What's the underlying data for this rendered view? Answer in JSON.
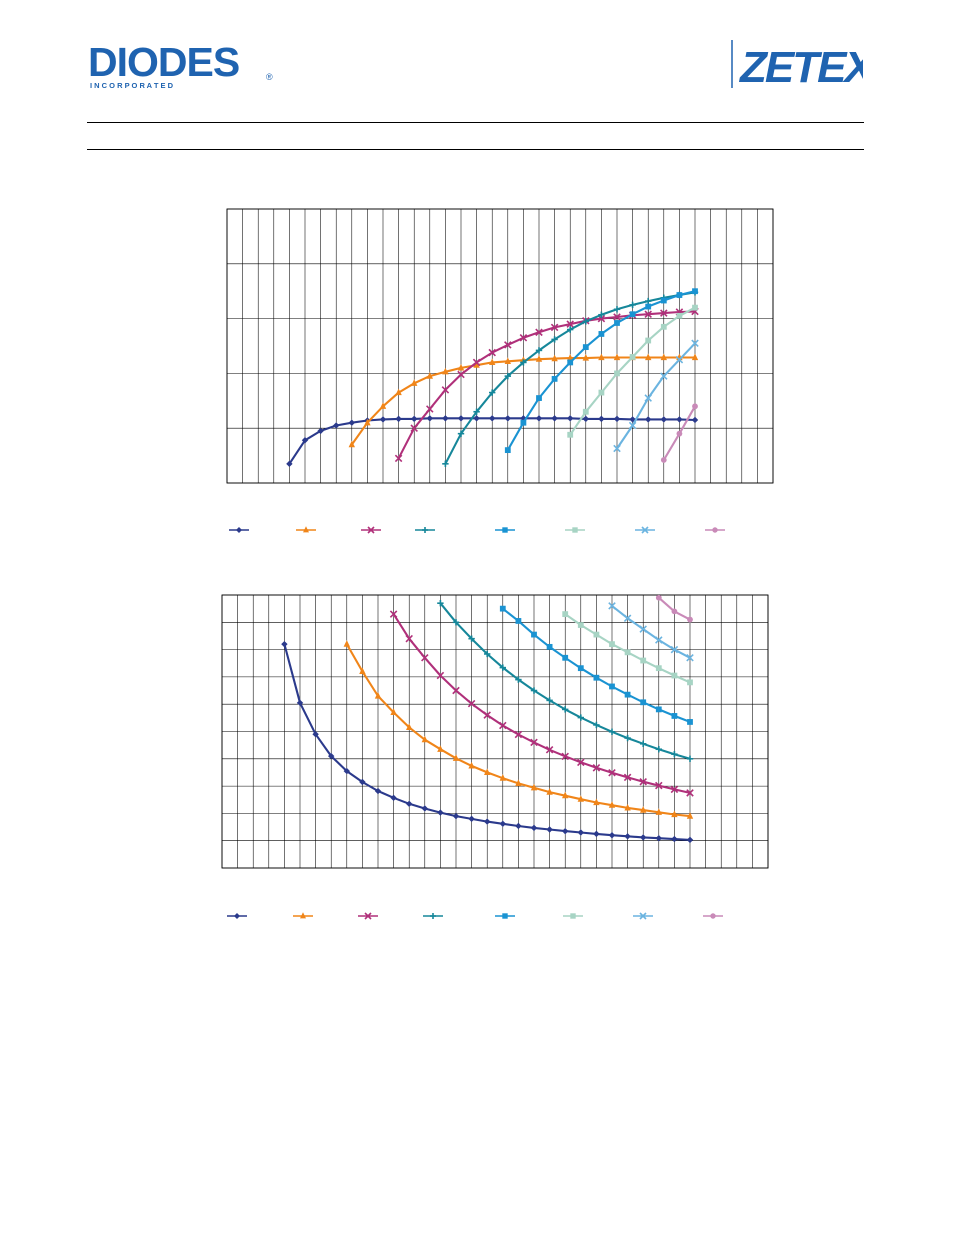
{
  "header": {
    "company_logo": "DIODES",
    "company_tagline": "I N C O R P O R A T E D",
    "registered_mark": "®",
    "brand_logo": "ZETEX",
    "brand_color": "#1f63b0"
  },
  "series_styles": [
    {
      "color": "#2b3a8c",
      "marker": "diamond"
    },
    {
      "color": "#f08519",
      "marker": "triangle"
    },
    {
      "color": "#b0307a",
      "marker": "x"
    },
    {
      "color": "#16879a",
      "marker": "plus"
    },
    {
      "color": "#1a93d2",
      "marker": "square"
    },
    {
      "color": "#a7d4c4",
      "marker": "square"
    },
    {
      "color": "#6bb4e0",
      "marker": "x"
    },
    {
      "color": "#c98ab8",
      "marker": "circle"
    }
  ],
  "chart_data": [
    {
      "type": "line",
      "title": "",
      "xlabel": "",
      "ylabel": "",
      "xlim": [
        0,
        35
      ],
      "ylim": [
        0,
        5
      ],
      "x_grid_step": 1,
      "y_grid_step": 1,
      "grid": true,
      "legend": "bottom",
      "series": [
        {
          "x": [
            4,
            5,
            6,
            7,
            8,
            9,
            10,
            11,
            12,
            13,
            14,
            15,
            16,
            17,
            18,
            19,
            20,
            21,
            22,
            23,
            24,
            25,
            26,
            27,
            28,
            29,
            30
          ],
          "y": [
            0.35,
            0.78,
            0.95,
            1.05,
            1.1,
            1.14,
            1.16,
            1.17,
            1.17,
            1.18,
            1.18,
            1.18,
            1.18,
            1.18,
            1.18,
            1.18,
            1.18,
            1.18,
            1.18,
            1.17,
            1.17,
            1.17,
            1.16,
            1.16,
            1.16,
            1.16,
            1.15
          ]
        },
        {
          "x": [
            8,
            9,
            10,
            11,
            12,
            13,
            14,
            15,
            16,
            17,
            18,
            19,
            20,
            21,
            22,
            23,
            24,
            25,
            26,
            27,
            28,
            29,
            30
          ],
          "y": [
            0.7,
            1.1,
            1.4,
            1.65,
            1.82,
            1.95,
            2.03,
            2.1,
            2.15,
            2.2,
            2.22,
            2.24,
            2.26,
            2.27,
            2.28,
            2.28,
            2.29,
            2.29,
            2.29,
            2.29,
            2.29,
            2.29,
            2.29
          ]
        },
        {
          "x": [
            11,
            12,
            13,
            14,
            15,
            16,
            17,
            18,
            19,
            20,
            21,
            22,
            23,
            24,
            25,
            26,
            27,
            28,
            29,
            30
          ],
          "y": [
            0.45,
            1.0,
            1.35,
            1.7,
            1.98,
            2.2,
            2.38,
            2.52,
            2.65,
            2.75,
            2.84,
            2.9,
            2.96,
            3.0,
            3.03,
            3.06,
            3.08,
            3.1,
            3.12,
            3.13
          ]
        },
        {
          "x": [
            14,
            15,
            16,
            17,
            18,
            19,
            20,
            21,
            22,
            23,
            24,
            25,
            26,
            27,
            28,
            29,
            30
          ],
          "y": [
            0.35,
            0.9,
            1.3,
            1.65,
            1.95,
            2.2,
            2.42,
            2.62,
            2.8,
            2.95,
            3.07,
            3.17,
            3.25,
            3.32,
            3.38,
            3.43,
            3.48
          ]
        },
        {
          "x": [
            18,
            19,
            20,
            21,
            22,
            23,
            24,
            25,
            26,
            27,
            28,
            29,
            30
          ],
          "y": [
            0.6,
            1.1,
            1.55,
            1.9,
            2.2,
            2.48,
            2.72,
            2.92,
            3.08,
            3.22,
            3.33,
            3.43,
            3.5
          ]
        },
        {
          "x": [
            22,
            23,
            24,
            25,
            26,
            27,
            28,
            29,
            30
          ],
          "y": [
            0.88,
            1.3,
            1.65,
            2.0,
            2.3,
            2.6,
            2.85,
            3.05,
            3.2
          ]
        },
        {
          "x": [
            25,
            26,
            27,
            28,
            29,
            30
          ],
          "y": [
            0.63,
            1.05,
            1.55,
            1.95,
            2.25,
            2.55
          ]
        },
        {
          "x": [
            28,
            29,
            30
          ],
          "y": [
            0.42,
            0.9,
            1.4
          ]
        }
      ]
    },
    {
      "type": "line",
      "title": "",
      "xlabel": "",
      "ylabel": "",
      "xlim": [
        0,
        35
      ],
      "ylim": [
        0,
        10
      ],
      "x_grid_step": 1,
      "y_grid_step": 1,
      "grid": true,
      "legend": "bottom",
      "series": [
        {
          "x": [
            4,
            5,
            6,
            7,
            8,
            9,
            10,
            11,
            12,
            13,
            14,
            15,
            16,
            17,
            18,
            19,
            20,
            21,
            22,
            23,
            24,
            25,
            26,
            27,
            28,
            29,
            30
          ],
          "y": [
            8.2,
            6.05,
            4.9,
            4.1,
            3.55,
            3.15,
            2.82,
            2.57,
            2.35,
            2.18,
            2.03,
            1.9,
            1.8,
            1.7,
            1.62,
            1.54,
            1.47,
            1.41,
            1.35,
            1.3,
            1.25,
            1.2,
            1.16,
            1.12,
            1.09,
            1.06,
            1.03
          ]
        },
        {
          "x": [
            8,
            9,
            10,
            11,
            12,
            13,
            14,
            15,
            16,
            17,
            18,
            19,
            20,
            21,
            22,
            23,
            24,
            25,
            26,
            27,
            28,
            29,
            30
          ],
          "y": [
            8.2,
            7.2,
            6.3,
            5.7,
            5.15,
            4.7,
            4.35,
            4.02,
            3.74,
            3.5,
            3.29,
            3.1,
            2.94,
            2.78,
            2.65,
            2.52,
            2.4,
            2.3,
            2.2,
            2.12,
            2.04,
            1.96,
            1.9
          ]
        },
        {
          "x": [
            11,
            12,
            13,
            14,
            15,
            16,
            17,
            18,
            19,
            20,
            21,
            22,
            23,
            24,
            25,
            26,
            27,
            28,
            29,
            30
          ],
          "y": [
            9.3,
            8.4,
            7.7,
            7.05,
            6.5,
            6.02,
            5.6,
            5.22,
            4.89,
            4.6,
            4.33,
            4.09,
            3.87,
            3.67,
            3.49,
            3.32,
            3.16,
            3.02,
            2.88,
            2.75
          ]
        },
        {
          "x": [
            14,
            15,
            16,
            17,
            18,
            19,
            20,
            21,
            22,
            23,
            24,
            25,
            26,
            27,
            28,
            29,
            30
          ],
          "y": [
            9.7,
            9.0,
            8.4,
            7.84,
            7.34,
            6.9,
            6.5,
            6.14,
            5.81,
            5.51,
            5.24,
            4.99,
            4.76,
            4.55,
            4.35,
            4.17,
            4.0
          ]
        },
        {
          "x": [
            18,
            19,
            20,
            21,
            22,
            23,
            24,
            25,
            26,
            27,
            28,
            29,
            30
          ],
          "y": [
            9.5,
            9.05,
            8.55,
            8.1,
            7.7,
            7.32,
            6.97,
            6.65,
            6.35,
            6.07,
            5.81,
            5.57,
            5.35
          ]
        },
        {
          "x": [
            22,
            23,
            24,
            25,
            26,
            27,
            28,
            29,
            30
          ],
          "y": [
            9.3,
            8.9,
            8.55,
            8.2,
            7.9,
            7.6,
            7.32,
            7.05,
            6.8
          ]
        },
        {
          "x": [
            25,
            26,
            27,
            28,
            29,
            30
          ],
          "y": [
            9.6,
            9.15,
            8.75,
            8.35,
            8.0,
            7.7
          ]
        },
        {
          "x": [
            28,
            29,
            30
          ],
          "y": [
            9.9,
            9.4,
            9.1
          ]
        }
      ]
    }
  ]
}
